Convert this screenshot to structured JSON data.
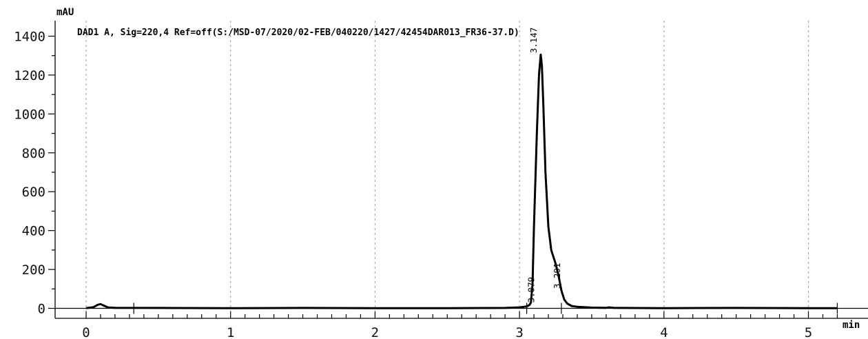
{
  "chart_data": {
    "type": "line",
    "title": "DAD1 A, Sig=220,4 Ref=off(S:/MSD-07/2020/02-FEB/040220/1427/42454DAR013_FR36-37.D)",
    "ylabel": "mAU",
    "xlabel": "min",
    "xlim": [
      -0.2,
      5.3
    ],
    "ylim": [
      -60,
      1470
    ],
    "x_ticks": [
      0,
      1,
      2,
      3,
      4,
      5
    ],
    "x_tick_labels": [
      "0",
      "1",
      "2",
      "3",
      "4",
      "5"
    ],
    "y_ticks": [
      0,
      200,
      400,
      600,
      800,
      1000,
      1200,
      1400
    ],
    "y_tick_labels": [
      "0",
      "200",
      "400",
      "600",
      "800",
      "1000",
      "1200",
      "1400"
    ],
    "grid": true,
    "series": [
      {
        "x": [
          0.0,
          0.05,
          0.08,
          0.1,
          0.12,
          0.15,
          0.2,
          0.5,
          1.0,
          1.5,
          2.0,
          2.5,
          2.9,
          3.0,
          3.05,
          3.07,
          3.079,
          3.09,
          3.1,
          3.12,
          3.135,
          3.147,
          3.155,
          3.165,
          3.18,
          3.2,
          3.22,
          3.25,
          3.27,
          3.291,
          3.31,
          3.33,
          3.36,
          3.4,
          3.5,
          3.6,
          3.62,
          3.65,
          3.7,
          4.0,
          4.5,
          5.0,
          5.2
        ],
        "y": [
          1,
          6,
          18,
          22,
          15,
          5,
          3,
          2,
          1,
          2,
          1,
          1,
          2,
          5,
          10,
          18,
          30,
          120,
          420,
          900,
          1200,
          1305,
          1250,
          1050,
          700,
          420,
          300,
          230,
          170,
          90,
          45,
          25,
          12,
          8,
          4,
          3,
          5,
          3,
          2,
          1,
          2,
          1,
          1
        ]
      }
    ],
    "peak_labels": [
      {
        "x": 3.079,
        "y": 30,
        "label": "3.079"
      },
      {
        "x": 3.147,
        "y": 1305,
        "label": "3.147"
      },
      {
        "x": 3.291,
        "y": 90,
        "label": "3.291"
      }
    ],
    "integration_marks": [
      0.33,
      3.05,
      3.29,
      5.2
    ]
  }
}
